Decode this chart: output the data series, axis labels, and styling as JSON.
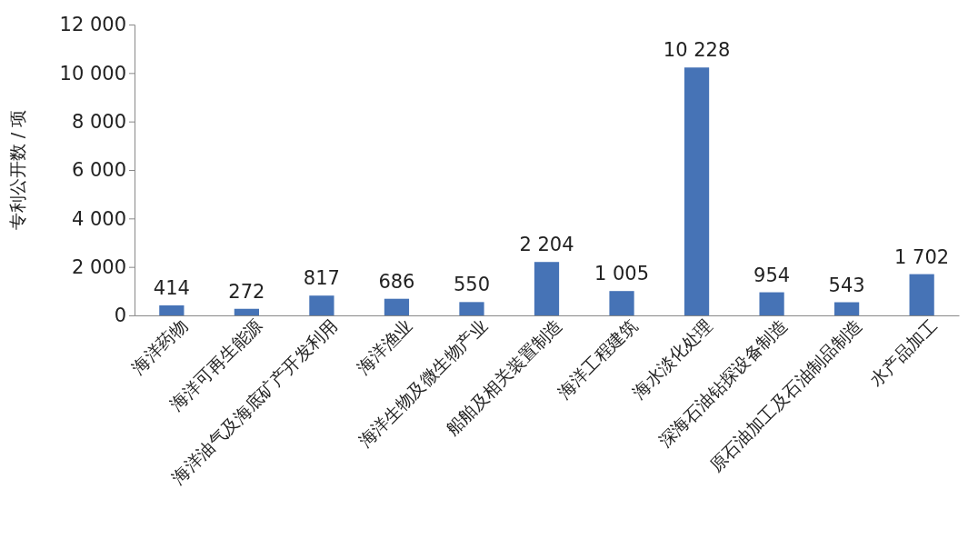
{
  "chart_data": {
    "type": "bar",
    "ylabel": "专利公开数 / 项",
    "categories": [
      "海洋药物",
      "海洋可再生能源",
      "海洋油气及海底矿产开发利用",
      "海洋渔业",
      "海洋生物及微生物产业",
      "船舶及相关装置制造",
      "海洋工程建筑",
      "海水淡化处理",
      "深海石油钻探设备制造",
      "原石油加工及石油制品制造",
      "水产品加工"
    ],
    "values": [
      414,
      272,
      817,
      686,
      550,
      2204,
      1005,
      10228,
      954,
      543,
      1702
    ],
    "value_labels": [
      "414",
      "272",
      "817",
      "686",
      "550",
      "2 204",
      "1 005",
      "10 228",
      "954",
      "543",
      "1 702"
    ],
    "color": "#4673b6",
    "ylim": [
      0,
      12000
    ],
    "yticks": [
      0,
      {
        "value": 2000,
        "label": "2 000"
      },
      {
        "value": 4000,
        "label": "4 000"
      },
      {
        "value": 6000,
        "label": "6 000"
      },
      {
        "value": 8000,
        "label": "8 000"
      },
      {
        "value": 10000,
        "label": "10 000"
      },
      {
        "value": 12000,
        "label": "12 000"
      }
    ],
    "grid": false
  }
}
